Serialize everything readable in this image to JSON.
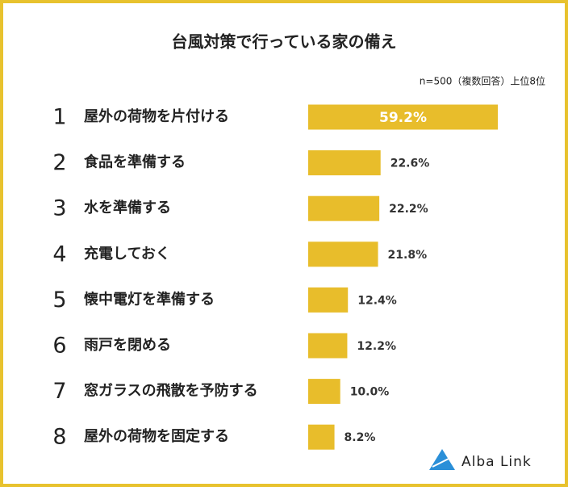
{
  "chart_data": {
    "type": "bar",
    "orientation": "horizontal",
    "title": "台風対策で行っている家の備え",
    "subtitle": "n=500（複数回答）上位8位",
    "ranks": [
      "1",
      "2",
      "3",
      "4",
      "5",
      "6",
      "7",
      "8"
    ],
    "categories": [
      "屋外の荷物を片付ける",
      "食品を準備する",
      "水を準備する",
      "充電しておく",
      "懐中電灯を準備する",
      "雨戸を閉める",
      "窓ガラスの飛散を予防する",
      "屋外の荷物を固定する"
    ],
    "values": [
      59.2,
      22.6,
      22.2,
      21.8,
      12.4,
      12.2,
      10.0,
      8.2
    ],
    "value_labels": [
      "59.2%",
      "22.6%",
      "22.2%",
      "21.8%",
      "12.4%",
      "12.2%",
      "10.0%",
      "8.2%"
    ],
    "color": "#e8bd2b",
    "rank_color": "#c9a11c",
    "logo": "Alba Link"
  }
}
